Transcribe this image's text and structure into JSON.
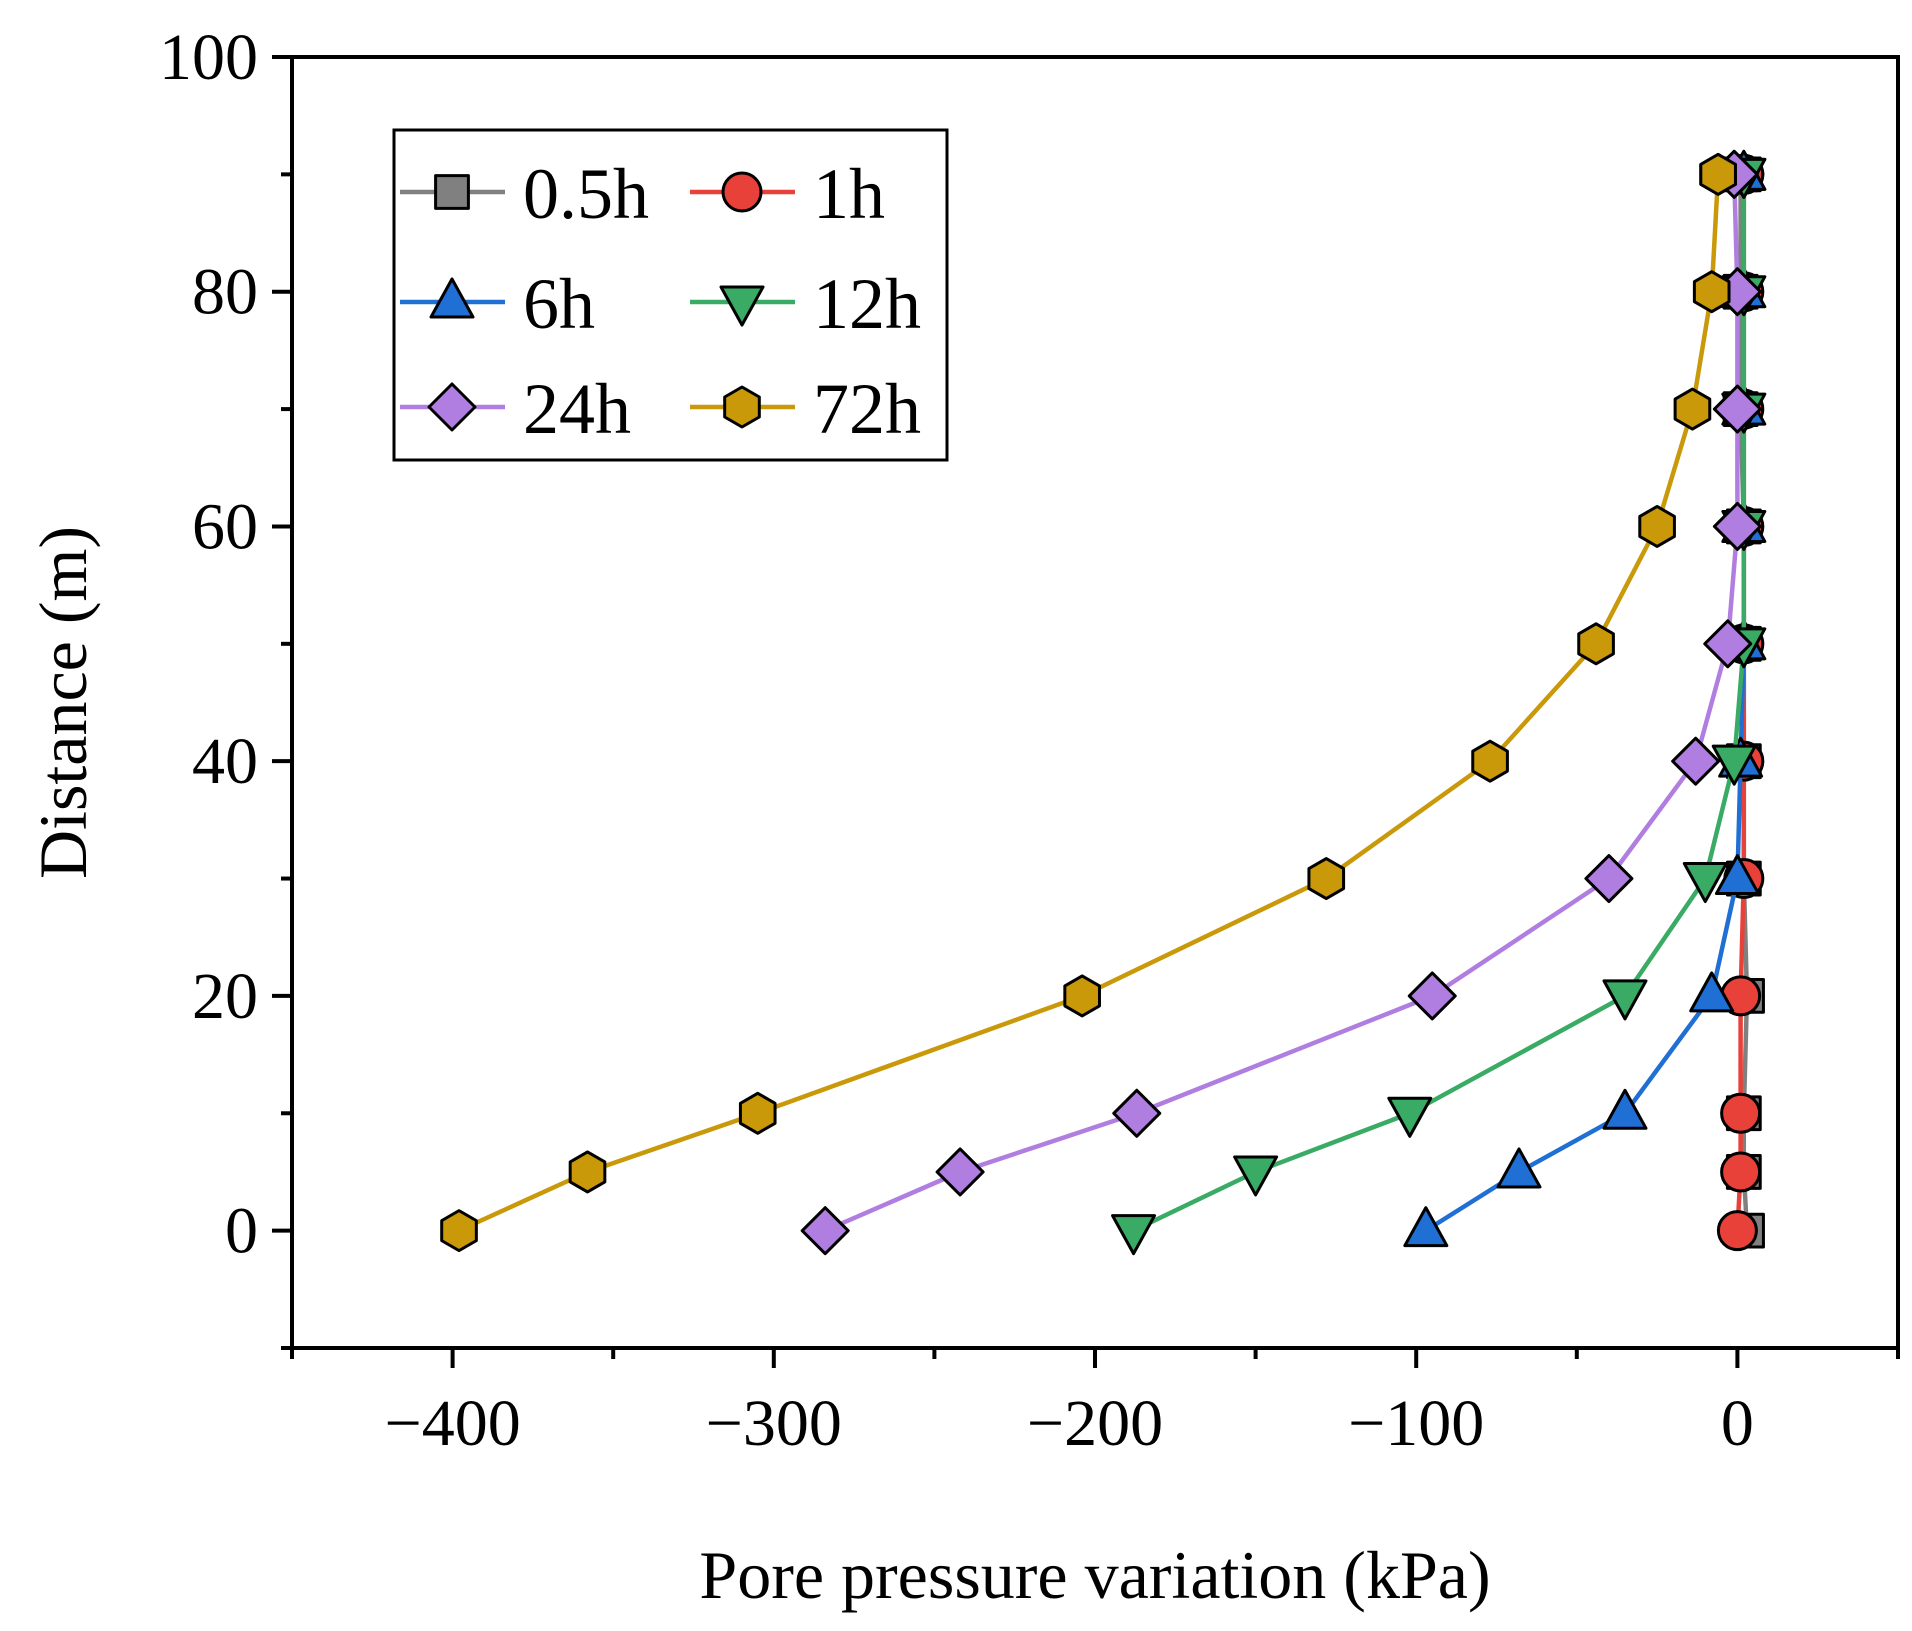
{
  "chart_data": {
    "type": "line",
    "title": "",
    "xlabel": "Pore pressure variation (kPa)",
    "ylabel": "Distance (m)",
    "xlim": [
      -450,
      50
    ],
    "ylim": [
      -10,
      100
    ],
    "x_ticks": [
      -400,
      -300,
      -200,
      -100,
      0
    ],
    "y_ticks": [
      0,
      20,
      40,
      60,
      80,
      100
    ],
    "x_tick_labels": [
      "−400",
      "−300",
      "−200",
      "−100",
      "0"
    ],
    "y_tick_labels": [
      "0",
      "20",
      "40",
      "60",
      "80",
      "100"
    ],
    "legend_position": "top-left",
    "series": [
      {
        "name": "0.5h",
        "color": "#808080",
        "marker": "square",
        "x": [
          3,
          2,
          2,
          3,
          2,
          2,
          2,
          2,
          1,
          1,
          1,
          2
        ],
        "y": [
          0,
          5,
          10,
          20,
          30,
          40,
          50,
          60,
          70,
          80,
          90,
          90
        ]
      },
      {
        "name": "1h",
        "color": "#e8413a",
        "marker": "circle",
        "x": [
          0,
          1,
          1,
          1,
          2,
          2,
          2,
          2,
          2,
          2,
          2,
          2
        ],
        "y": [
          0,
          5,
          10,
          20,
          30,
          40,
          50,
          60,
          70,
          80,
          90,
          90
        ]
      },
      {
        "name": "6h",
        "color": "#1f6fd4",
        "marker": "triangle-up",
        "x": [
          -97,
          -68,
          -35,
          -8,
          0,
          1,
          2,
          2,
          2,
          2,
          2,
          2
        ],
        "y": [
          0,
          5,
          10,
          20,
          30,
          40,
          50,
          60,
          70,
          80,
          90,
          90
        ]
      },
      {
        "name": "12h",
        "color": "#3aab64",
        "marker": "triangle-down",
        "x": [
          -188,
          -150,
          -102,
          -35,
          -10,
          -1,
          2,
          2,
          2,
          2,
          2,
          2
        ],
        "y": [
          0,
          5,
          10,
          20,
          30,
          40,
          50,
          60,
          70,
          80,
          90,
          90
        ]
      },
      {
        "name": "24h",
        "color": "#b07ee0",
        "marker": "diamond",
        "x": [
          -284,
          -242,
          -187,
          -95,
          -40,
          -13,
          -3,
          0,
          0,
          0,
          -1,
          -1
        ],
        "y": [
          0,
          5,
          10,
          20,
          30,
          40,
          50,
          60,
          70,
          80,
          90,
          90
        ]
      },
      {
        "name": "72h",
        "color": "#c9990a",
        "marker": "hexagon",
        "x": [
          -398,
          -358,
          -305,
          -204,
          -128,
          -77,
          -44,
          -25,
          -14,
          -8,
          -6,
          -6
        ],
        "y": [
          0,
          5,
          10,
          20,
          30,
          40,
          50,
          60,
          70,
          80,
          90,
          90
        ]
      }
    ]
  }
}
